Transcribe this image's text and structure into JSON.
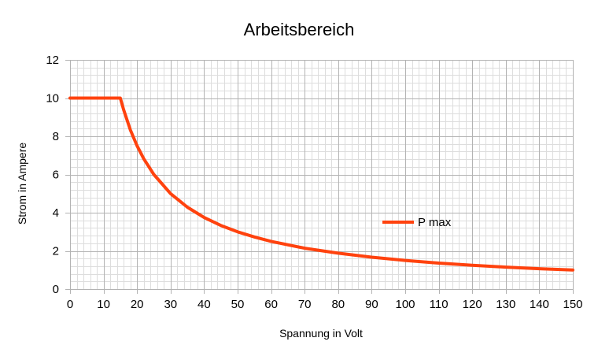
{
  "chart_data": {
    "type": "line",
    "title": "Arbeitsbereich",
    "xlabel": "Spannung in Volt",
    "ylabel": "Strom in Ampere",
    "xlim": [
      0,
      150
    ],
    "ylim": [
      0,
      12
    ],
    "x_major_step": 10,
    "x_minor_step": 2,
    "y_major_step": 2,
    "y_minor_step": 0.4,
    "grid": true,
    "legend_position": "right",
    "series": [
      {
        "name": "P max",
        "color": "#ff420e",
        "x": [
          0,
          10,
          15,
          16,
          18,
          20,
          22,
          25,
          30,
          35,
          40,
          45,
          50,
          55,
          60,
          70,
          80,
          90,
          100,
          110,
          120,
          130,
          140,
          150
        ],
        "y": [
          10,
          10,
          10,
          9.38,
          8.33,
          7.5,
          6.82,
          6.0,
          5.0,
          4.29,
          3.75,
          3.33,
          3.0,
          2.73,
          2.5,
          2.14,
          1.88,
          1.67,
          1.5,
          1.36,
          1.25,
          1.15,
          1.07,
          1.0
        ]
      }
    ]
  }
}
